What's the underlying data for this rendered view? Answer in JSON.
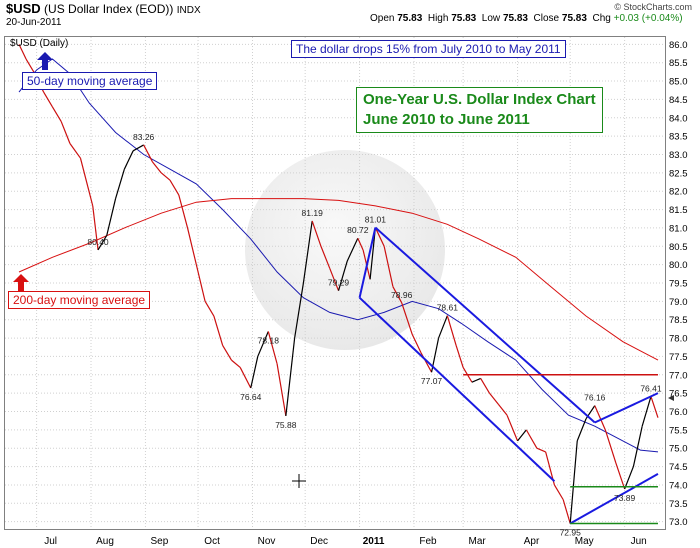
{
  "header": {
    "symbol": "$USD",
    "name": "(US Dollar Index (EOD))",
    "exchange": "INDX",
    "date": "20-Jun-2011",
    "open_label": "Open",
    "open": "75.83",
    "high_label": "High",
    "high": "75.83",
    "low_label": "Low",
    "low": "75.83",
    "close_label": "Close",
    "close": "75.83",
    "chg_label": "Chg",
    "chg": "+0.03 (+0.04%)",
    "credit": "© StockCharts.com",
    "panel_label": "$USD (Daily)"
  },
  "annotations": {
    "drop": "The dollar drops 15% from July 2010 to May 2011",
    "title_line1": "One-Year U.S. Dollar Index Chart",
    "title_line2": "June 2010 to June 2011",
    "ma50": "50-day moving average",
    "ma200": "200-day moving average"
  },
  "colors": {
    "price": "#000000",
    "price_down": "#cc1010",
    "ma50": "#1a1ab0",
    "ma200": "#d81010",
    "channel": "#1a1ae0",
    "resistance": "#cc1010",
    "support": "#1a8a1a",
    "grid": "#d0d0d0"
  },
  "chart_data": {
    "type": "line",
    "title": "One-Year U.S. Dollar Index Chart",
    "subtitle": "June 2010 to June 2011",
    "x_labels": [
      "Jul",
      "Aug",
      "Sep",
      "Oct",
      "Nov",
      "Dec",
      "2011",
      "Feb",
      "Mar",
      "Apr",
      "May",
      "Jun"
    ],
    "ylim": [
      72.8,
      86.2
    ],
    "y_ticks": [
      "73.0",
      "73.5",
      "74.0",
      "74.5",
      "75.0",
      "75.5",
      "76.0",
      "76.5",
      "77.0",
      "77.5",
      "78.0",
      "78.5",
      "79.0",
      "79.5",
      "80.0",
      "80.5",
      "81.0",
      "81.5",
      "82.0",
      "82.5",
      "83.0",
      "83.5",
      "84.0",
      "84.5",
      "85.0",
      "85.5",
      "86.0"
    ],
    "grid": true,
    "series": [
      {
        "kind": "price",
        "x": [
          "2010-06-21",
          "2010-06-25",
          "2010-06-30",
          "2010-07-05",
          "2010-07-10",
          "2010-07-15",
          "2010-07-20",
          "2010-07-26",
          "2010-08-02",
          "2010-08-05",
          "2010-08-10",
          "2010-08-15",
          "2010-08-20",
          "2010-08-25",
          "2010-08-31",
          "2010-09-05",
          "2010-09-10",
          "2010-09-15",
          "2010-09-20",
          "2010-09-25",
          "2010-09-30",
          "2010-10-05",
          "2010-10-10",
          "2010-10-15",
          "2010-10-20",
          "2010-10-25",
          "2010-10-31",
          "2010-11-04",
          "2010-11-10",
          "2010-11-15",
          "2010-11-20",
          "2010-11-25",
          "2010-11-30",
          "2010-12-05",
          "2010-12-10",
          "2010-12-15",
          "2010-12-20",
          "2010-12-25",
          "2010-12-31",
          "2011-01-03",
          "2011-01-07",
          "2011-01-10",
          "2011-01-15",
          "2011-01-20",
          "2011-01-25",
          "2011-01-31",
          "2011-02-05",
          "2011-02-11",
          "2011-02-15",
          "2011-02-20",
          "2011-02-25",
          "2011-03-01",
          "2011-03-06",
          "2011-03-11",
          "2011-03-16",
          "2011-03-21",
          "2011-03-26",
          "2011-04-01",
          "2011-04-06",
          "2011-04-12",
          "2011-04-17",
          "2011-04-22",
          "2011-04-27",
          "2011-05-01",
          "2011-05-05",
          "2011-05-10",
          "2011-05-15",
          "2011-05-21",
          "2011-05-27",
          "2011-06-01",
          "2011-06-06",
          "2011-06-11",
          "2011-06-16",
          "2011-06-20"
        ],
        "y": [
          86.0,
          85.6,
          85.2,
          84.7,
          84.3,
          83.9,
          83.3,
          82.9,
          81.6,
          80.4,
          80.8,
          81.8,
          82.6,
          83.1,
          83.26,
          82.8,
          82.5,
          82.3,
          81.9,
          81.0,
          80.0,
          79.0,
          78.6,
          77.8,
          77.4,
          77.2,
          76.64,
          77.5,
          78.18,
          77.3,
          75.88,
          78.0,
          79.5,
          81.19,
          80.5,
          79.9,
          79.29,
          80.1,
          80.72,
          80.4,
          79.6,
          81.01,
          80.5,
          79.4,
          78.96,
          78.1,
          77.6,
          77.07,
          78.0,
          78.61,
          77.8,
          77.2,
          76.8,
          76.9,
          76.5,
          76.2,
          75.9,
          75.2,
          75.5,
          75.0,
          74.9,
          74.0,
          73.6,
          72.95,
          75.2,
          75.8,
          76.16,
          75.5,
          74.6,
          73.89,
          74.5,
          75.6,
          76.41,
          75.83
        ]
      },
      {
        "name": "50-day moving average",
        "kind": "ma50",
        "x": [
          "2010-06-21",
          "2010-07-01",
          "2010-07-10",
          "2010-07-20",
          "2010-07-31",
          "2010-08-15",
          "2010-08-31",
          "2010-09-15",
          "2010-09-30",
          "2010-10-15",
          "2010-10-31",
          "2010-11-15",
          "2010-11-30",
          "2010-12-15",
          "2010-12-31",
          "2011-01-15",
          "2011-01-31",
          "2011-02-15",
          "2011-02-28",
          "2011-03-15",
          "2011-03-31",
          "2011-04-15",
          "2011-04-30",
          "2011-05-15",
          "2011-05-31",
          "2011-06-10",
          "2011-06-20"
        ],
        "y": [
          84.7,
          85.3,
          85.6,
          85.2,
          84.4,
          83.6,
          83.0,
          82.6,
          82.2,
          81.5,
          80.7,
          79.8,
          79.1,
          78.7,
          78.5,
          78.7,
          79.0,
          78.8,
          78.4,
          77.9,
          77.4,
          76.6,
          75.9,
          75.6,
          75.2,
          74.95,
          74.9
        ]
      },
      {
        "name": "200-day moving average",
        "kind": "ma200",
        "x": [
          "2010-06-21",
          "2010-07-10",
          "2010-08-01",
          "2010-08-20",
          "2010-09-10",
          "2010-09-30",
          "2010-10-20",
          "2010-11-10",
          "2010-11-30",
          "2010-12-20",
          "2011-01-10",
          "2011-01-31",
          "2011-02-20",
          "2011-03-10",
          "2011-03-31",
          "2011-04-20",
          "2011-05-10",
          "2011-05-31",
          "2011-06-20"
        ],
        "y": [
          79.8,
          80.2,
          80.6,
          81.0,
          81.4,
          81.7,
          81.8,
          81.8,
          81.8,
          81.75,
          81.6,
          81.4,
          81.1,
          80.7,
          80.2,
          79.4,
          78.6,
          77.9,
          77.4
        ]
      }
    ],
    "price_labels": [
      {
        "x": "2010-08-05",
        "y": 80.4,
        "text": "80.40"
      },
      {
        "x": "2010-08-31",
        "y": 83.26,
        "text": "83.26"
      },
      {
        "x": "2010-10-31",
        "y": 76.64,
        "text": "76.64"
      },
      {
        "x": "2010-11-10",
        "y": 78.18,
        "text": "78.18"
      },
      {
        "x": "2010-11-20",
        "y": 75.88,
        "text": "75.88"
      },
      {
        "x": "2010-12-05",
        "y": 81.19,
        "text": "81.19"
      },
      {
        "x": "2010-12-20",
        "y": 79.29,
        "text": "79.29"
      },
      {
        "x": "2010-12-31",
        "y": 80.72,
        "text": "80.72"
      },
      {
        "x": "2011-01-10",
        "y": 81.01,
        "text": "81.01"
      },
      {
        "x": "2011-01-25",
        "y": 78.96,
        "text": "78.96"
      },
      {
        "x": "2011-02-11",
        "y": 77.07,
        "text": "77.07"
      },
      {
        "x": "2011-02-20",
        "y": 78.61,
        "text": "78.61"
      },
      {
        "x": "2011-05-01",
        "y": 72.95,
        "text": "72.95"
      },
      {
        "x": "2011-05-15",
        "y": 76.16,
        "text": "76.16"
      },
      {
        "x": "2011-06-01",
        "y": 73.89,
        "text": "73.89"
      },
      {
        "x": "2011-06-16",
        "y": 76.41,
        "text": "76.41"
      }
    ],
    "trend_lines": [
      {
        "kind": "channel",
        "x": [
          "2011-01-10",
          "2011-05-15"
        ],
        "y": [
          81.01,
          75.7
        ]
      },
      {
        "kind": "channel",
        "x": [
          "2011-01-01",
          "2011-04-22"
        ],
        "y": [
          79.1,
          74.1
        ]
      },
      {
        "kind": "channel",
        "x": [
          "2011-01-10",
          "2011-01-01"
        ],
        "y": [
          81.01,
          79.1
        ]
      },
      {
        "kind": "channel",
        "x": [
          "2011-05-15",
          "2011-06-20"
        ],
        "y": [
          75.7,
          76.5
        ]
      },
      {
        "kind": "channel",
        "x": [
          "2011-05-01",
          "2011-06-20"
        ],
        "y": [
          72.95,
          74.3
        ]
      },
      {
        "kind": "resistance",
        "x": [
          "2011-03-01",
          "2011-06-20"
        ],
        "y": [
          77.0,
          77.0
        ]
      },
      {
        "kind": "support",
        "x": [
          "2011-05-01",
          "2011-06-20"
        ],
        "y": [
          73.95,
          73.95
        ]
      },
      {
        "kind": "support",
        "x": [
          "2011-05-01",
          "2011-06-20"
        ],
        "y": [
          72.95,
          72.95
        ]
      }
    ]
  }
}
